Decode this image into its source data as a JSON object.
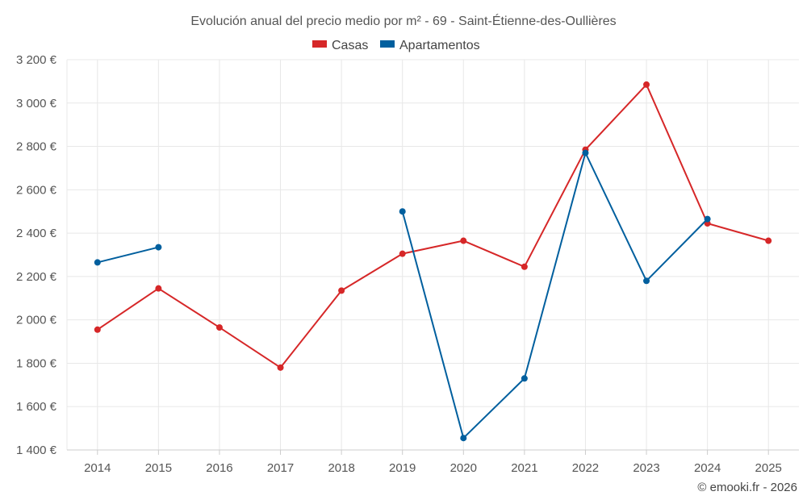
{
  "chart_data": {
    "type": "line",
    "title": "Evolución anual del precio medio por m² - 69 - Saint-Étienne-des-Oullières",
    "categories": [
      "2014",
      "2015",
      "2016",
      "2017",
      "2018",
      "2019",
      "2020",
      "2021",
      "2022",
      "2023",
      "2024",
      "2025"
    ],
    "ylim": [
      1400,
      3200
    ],
    "yticks": [
      1400,
      1600,
      1800,
      2000,
      2200,
      2400,
      2600,
      2800,
      3000,
      3200
    ],
    "ytick_labels": [
      "1 400 €",
      "1 600 €",
      "1 800 €",
      "2 000 €",
      "2 200 €",
      "2 400 €",
      "2 600 €",
      "2 800 €",
      "3 000 €",
      "3 200 €"
    ],
    "xlabel": "",
    "ylabel": "",
    "grid": true,
    "legend_position": "top-center",
    "series": [
      {
        "name": "Casas",
        "color": "#d62728",
        "values": [
          1955,
          2145,
          1965,
          1780,
          2135,
          2305,
          2365,
          2245,
          2785,
          3085,
          2445,
          2365
        ]
      },
      {
        "name": "Apartamentos",
        "color": "#005f9e",
        "values": [
          2265,
          2335,
          null,
          null,
          null,
          2500,
          1455,
          1730,
          2770,
          2180,
          2465,
          null
        ]
      }
    ]
  },
  "legend": {
    "casas": "Casas",
    "apartamentos": "Apartamentos"
  },
  "credit": "© emooki.fr - 2026"
}
